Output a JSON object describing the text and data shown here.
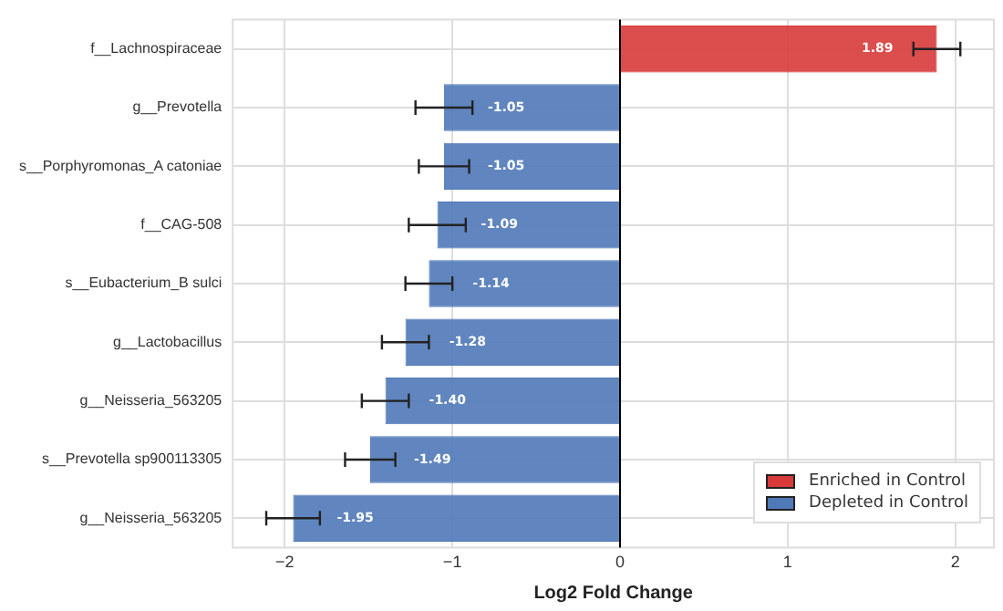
{
  "chart_data": {
    "type": "bar",
    "orientation": "horizontal",
    "xlabel": "Log2 Fold Change",
    "categories": [
      "f__Lachnospiraceae",
      "g__Prevotella",
      "s__Porphyromonas_A catoniae",
      "f__CAG-508",
      "s__Eubacterium_B sulci",
      "g__Lactobacillus",
      "g__Neisseria_563205",
      "s__Prevotella sp900113305",
      "g__Neisseria_563205"
    ],
    "series": [
      {
        "name": "Enriched in Control",
        "color": "#d83a3a",
        "values": [
          1.89,
          null,
          null,
          null,
          null,
          null,
          null,
          null,
          null
        ],
        "errors": [
          0.14,
          null,
          null,
          null,
          null,
          null,
          null,
          null,
          null
        ],
        "value_labels": [
          "1.89",
          null,
          null,
          null,
          null,
          null,
          null,
          null,
          null
        ]
      },
      {
        "name": "Depleted in Control",
        "color": "#5079b8",
        "values": [
          null,
          -1.05,
          -1.05,
          -1.09,
          -1.14,
          -1.28,
          -1.4,
          -1.49,
          -1.95
        ],
        "errors": [
          null,
          0.17,
          0.15,
          0.17,
          0.14,
          0.14,
          0.14,
          0.15,
          0.16
        ],
        "value_labels": [
          null,
          "-1.05",
          "-1.05",
          "-1.09",
          "-1.14",
          "-1.28",
          "-1.40",
          "-1.49",
          "-1.95"
        ]
      }
    ],
    "xlim": [
      -2.31,
      2.23
    ],
    "xticks": [
      {
        "value": -2,
        "label": "−2"
      },
      {
        "value": -1,
        "label": "−1"
      },
      0,
      1,
      2
    ],
    "ref_lines": [
      {
        "axis": "x",
        "value": 0,
        "color": "#000000"
      }
    ],
    "grid": true,
    "legend": "bottom right"
  }
}
